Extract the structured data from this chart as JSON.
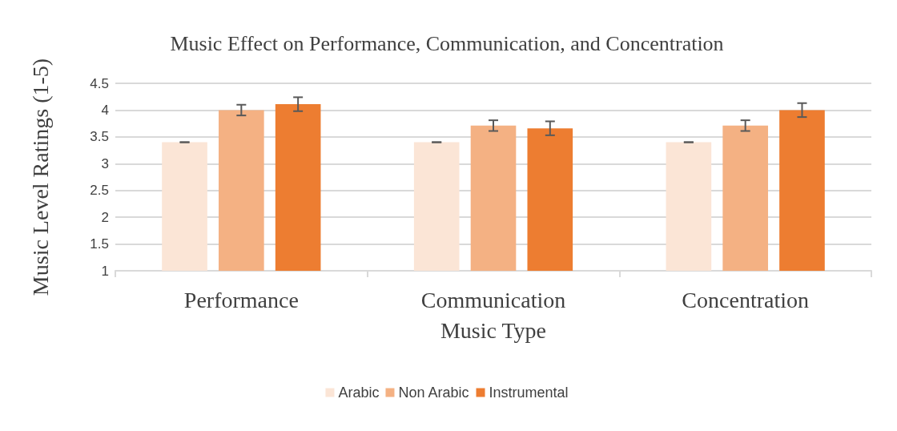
{
  "chart_data": {
    "type": "bar",
    "title": "Music Effect on Performance, Communication, and Concentration",
    "xlabel": "Music Type",
    "ylabel": "Music Level Ratings (1-5)",
    "categories": [
      "Performance",
      "Communication",
      "Concentration"
    ],
    "series": [
      {
        "name": "Arabic",
        "color": "#fbe5d6",
        "values": [
          3.4,
          3.4,
          3.4
        ],
        "errors": [
          0,
          0,
          0
        ]
      },
      {
        "name": "Non Arabic",
        "color": "#f4b183",
        "values": [
          4.0,
          3.71,
          3.71
        ],
        "errors": [
          0.1,
          0.1,
          0.1
        ]
      },
      {
        "name": "Instrumental",
        "color": "#ed7d31",
        "values": [
          4.11,
          3.66,
          4.0
        ],
        "errors": [
          0.13,
          0.13,
          0.13
        ]
      }
    ],
    "ylim": [
      1,
      4.5
    ],
    "yticks": [
      1,
      1.5,
      2,
      2.5,
      3,
      3.5,
      4,
      4.5
    ],
    "grid": "y",
    "legend": "bottom"
  }
}
